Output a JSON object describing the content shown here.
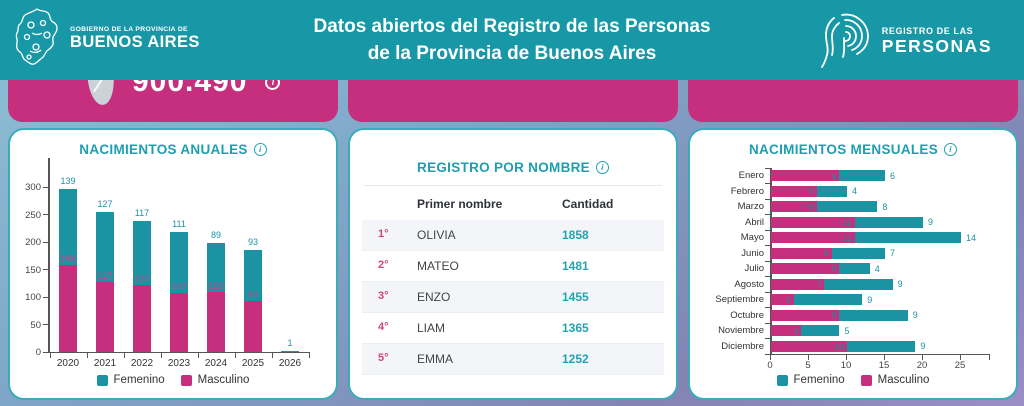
{
  "header": {
    "gov_logo": {
      "line1": "GOBIERNO DE LA PROVINCIA DE",
      "line2": "BUENOS AIRES"
    },
    "title_line1": "Datos abiertos del Registro de las Personas",
    "title_line2": "de la Provincia de Buenos Aires",
    "registry_logo": {
      "line1": "REGISTRO DE LAS",
      "line2": "PERSONAS"
    }
  },
  "stat_banner": {
    "value": "900.490",
    "info_icon": "i"
  },
  "colors": {
    "header_teal": "#1898a6",
    "card_border_teal": "#3aacba",
    "title_teal": "#1d9fb0",
    "femenino_teal": "#1b93a2",
    "masculino_pink": "#c62f7e",
    "banner_pink": "#c62f7e",
    "rank_pink": "#d6417f",
    "count_teal": "#23a3b1"
  },
  "chart_data": [
    {
      "type": "bar",
      "stacked": true,
      "title": "NACIMIENTOS ANUALES",
      "categories": [
        "2020",
        "2021",
        "2022",
        "2023",
        "2024",
        "2025",
        "2026"
      ],
      "series": [
        {
          "name": "Masculino",
          "color": "#c62f7e",
          "values": [
            158,
            127,
            122,
            107,
            110,
            93,
            0
          ]
        },
        {
          "name": "Femenino",
          "color": "#1b93a2",
          "values": [
            139,
            127,
            117,
            111,
            89,
            93,
            1
          ]
        }
      ],
      "ylim": [
        0,
        310
      ],
      "yticks": [
        0,
        50,
        100,
        150,
        200,
        250,
        300
      ],
      "legend_position": "bottom",
      "grid": false
    },
    {
      "type": "table",
      "title": "REGISTRO POR NOMBRE",
      "columns": [
        "Primer nombre",
        "Cantidad"
      ],
      "rows": [
        {
          "rank": "1°",
          "name": "OLIVIA",
          "count": "1858"
        },
        {
          "rank": "2°",
          "name": "MATEO",
          "count": "1481"
        },
        {
          "rank": "3°",
          "name": "ENZO",
          "count": "1455"
        },
        {
          "rank": "4°",
          "name": "LIAM",
          "count": "1365"
        },
        {
          "rank": "5°",
          "name": "EMMA",
          "count": "1252"
        }
      ]
    },
    {
      "type": "bar-horizontal",
      "stacked": true,
      "title": "NACIMIENTOS MENSUALES",
      "categories": [
        "Enero",
        "Febrero",
        "Marzo",
        "Abril",
        "Mayo",
        "Junio",
        "Julio",
        "Agosto",
        "Septiembre",
        "Octubre",
        "Noviembre",
        "Diciembre"
      ],
      "series": [
        {
          "name": "Masculino",
          "color": "#c62f7e",
          "values": [
            9,
            6,
            6,
            11,
            11,
            8,
            9,
            7,
            3,
            9,
            4,
            10
          ]
        },
        {
          "name": "Femenino",
          "color": "#1b93a2",
          "values": [
            6,
            4,
            8,
            9,
            14,
            7,
            4,
            9,
            9,
            9,
            5,
            9
          ]
        }
      ],
      "xlim": [
        0,
        28
      ],
      "xticks": [
        0,
        5,
        10,
        15,
        20,
        25
      ],
      "legend_position": "bottom",
      "grid": false
    }
  ]
}
